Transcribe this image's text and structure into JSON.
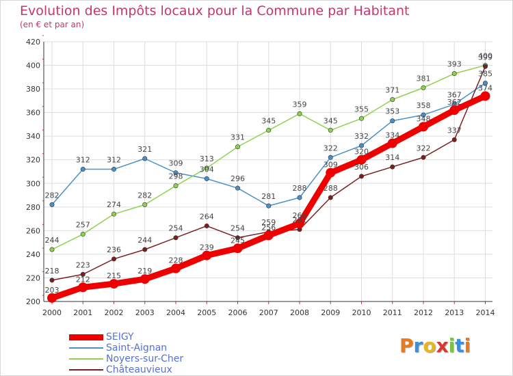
{
  "title": "Evolution des Impôts locaux pour la Commune par Habitant",
  "subtitle": "(en € et par an)",
  "logo": {
    "letters": [
      "P",
      "r",
      "o",
      "x",
      "i",
      "t",
      "i"
    ],
    "colors": [
      "#e87a1d",
      "#3a8fd6",
      "#e8b51d",
      "#d63a2a",
      "#7cc242",
      "#3a8fd6",
      "#e87a1d"
    ]
  },
  "chart_data": {
    "type": "line",
    "x": [
      "2000",
      "2001",
      "2002",
      "2003",
      "2004",
      "2005",
      "2006",
      "2007",
      "2008",
      "2009",
      "2010",
      "2011",
      "2012",
      "2013",
      "2014"
    ],
    "ylim": [
      200,
      420
    ],
    "yticks": [
      "200",
      "220",
      "240",
      "260",
      "280",
      "300",
      "320",
      "340",
      "360",
      "380",
      "400",
      "420"
    ],
    "grid": true,
    "legend_position": "bottom-left",
    "series": [
      {
        "name": "SEIGY",
        "color": "#ee0000",
        "values": [
          203,
          212,
          215,
          219,
          228,
          239,
          245,
          256,
          266,
          309,
          320,
          334,
          348,
          362,
          374
        ],
        "labels": [
          "203",
          "212",
          "215",
          "219",
          "228",
          "239",
          "245",
          "256",
          "266",
          "309",
          "320",
          "334",
          "348",
          "362",
          "374"
        ]
      },
      {
        "name": "Saint-Aignan",
        "color": "#4a90c8",
        "values": [
          282,
          312,
          312,
          321,
          309,
          304,
          296,
          281,
          288,
          322,
          332,
          353,
          358,
          367,
          385
        ],
        "labels": [
          "282",
          "312",
          "312",
          "321",
          "309",
          "304",
          "296",
          "281",
          "288",
          "322",
          "332",
          "353",
          "358",
          "367",
          "385"
        ]
      },
      {
        "name": "Noyers-sur-Cher",
        "color": "#8fd14f",
        "values": [
          244,
          257,
          274,
          282,
          298,
          313,
          331,
          345,
          359,
          345,
          355,
          371,
          381,
          393,
          400
        ],
        "labels": [
          "244",
          "257",
          "274",
          "282",
          "298",
          "313",
          "331",
          "345",
          "359",
          "345",
          "355",
          "371",
          "381",
          "393",
          "400"
        ]
      },
      {
        "name": "Châteauvieux",
        "color": "#7a1f1f",
        "values": [
          218,
          223,
          236,
          244,
          254,
          264,
          254,
          259,
          261,
          288,
          306,
          314,
          322,
          337,
          399
        ],
        "labels": [
          "218",
          "223",
          "236",
          "244",
          "254",
          "264",
          "254",
          "259",
          "261",
          "288",
          "306",
          "314",
          "322",
          "337",
          "399"
        ]
      }
    ]
  }
}
